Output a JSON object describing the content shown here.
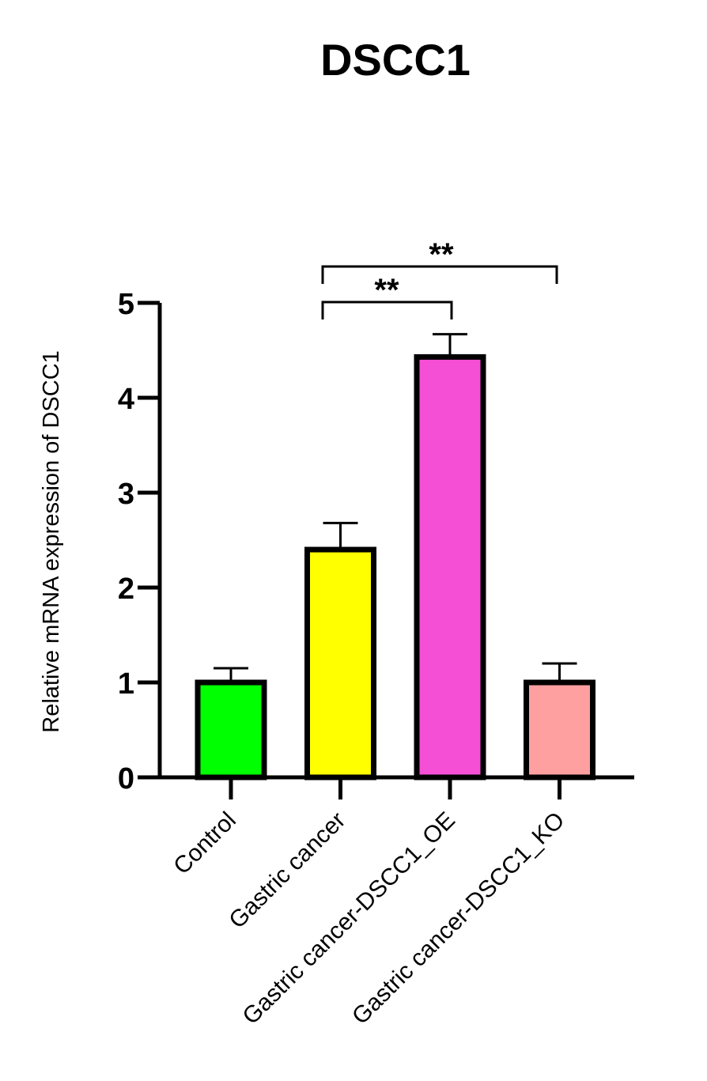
{
  "chart_data": {
    "type": "bar",
    "title": "DSCC1",
    "xlabel": "",
    "ylabel": "Relative mRNA expression of DSCC1",
    "ylim": [
      0,
      5
    ],
    "yticks": [
      0,
      1,
      2,
      3,
      4,
      5
    ],
    "categories": [
      "Control",
      "Gastric cancer",
      "Gastric cancer-DSCC1_OE",
      "Gastric cancer-DSCC1_KO"
    ],
    "values": [
      1.0,
      2.4,
      4.43,
      1.0
    ],
    "errors": [
      0.15,
      0.28,
      0.24,
      0.2
    ],
    "colors": [
      "#00ff00",
      "#ffff00",
      "#f54fd6",
      "#ffa0a0"
    ],
    "significance": [
      {
        "from": "Gastric cancer",
        "to": "Gastric cancer-DSCC1_OE",
        "label": "**"
      },
      {
        "from": "Gastric cancer",
        "to": "Gastric cancer-DSCC1_KO",
        "label": "**"
      }
    ]
  }
}
